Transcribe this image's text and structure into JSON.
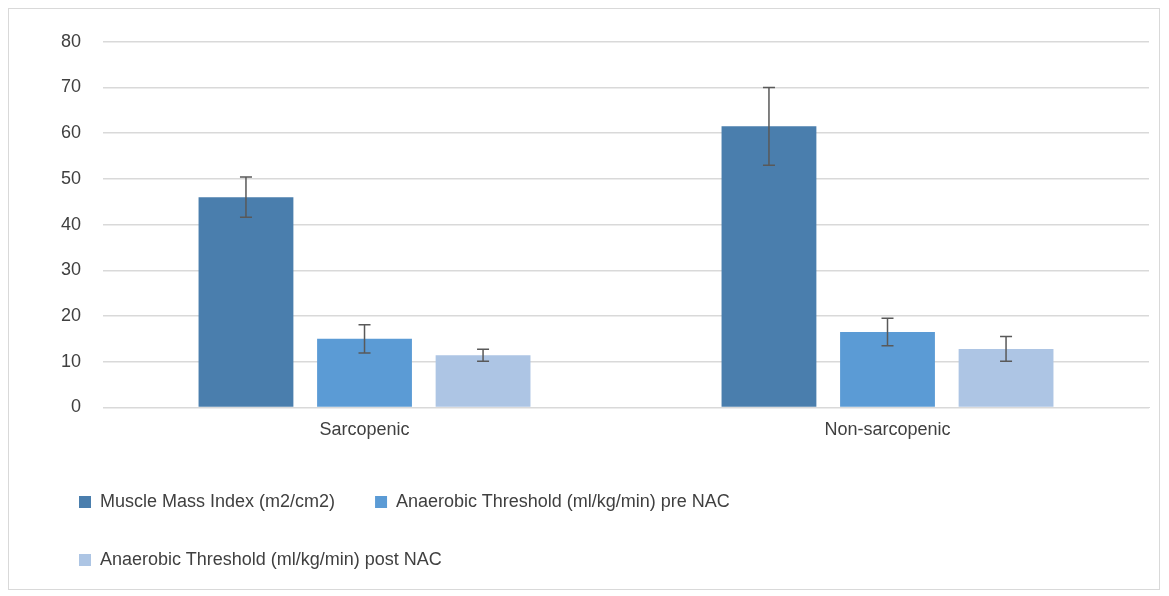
{
  "chart_data": {
    "type": "bar",
    "categories": [
      "Sarcopenic",
      "Non-sarcopenic"
    ],
    "series": [
      {
        "name": "Muscle Mass Index (m2/cm2)",
        "color": "#4a7ead",
        "values": [
          46.0,
          61.5
        ],
        "errors": [
          4.4,
          8.5
        ]
      },
      {
        "name": "Anaerobic Threshold (ml/kg/min) pre NAC",
        "color": "#5b9bd5",
        "values": [
          15.0,
          16.5
        ],
        "errors": [
          3.1,
          3.0
        ]
      },
      {
        "name": "Anaerobic Threshold (ml/kg/min) post NAC",
        "color": "#adc5e4",
        "values": [
          11.4,
          12.8
        ],
        "errors": [
          1.3,
          2.7
        ]
      }
    ],
    "ylim": [
      0,
      80
    ],
    "yticks": [
      0,
      10,
      20,
      30,
      40,
      50,
      60,
      70,
      80
    ],
    "grid": "y",
    "legend": "bottom"
  }
}
